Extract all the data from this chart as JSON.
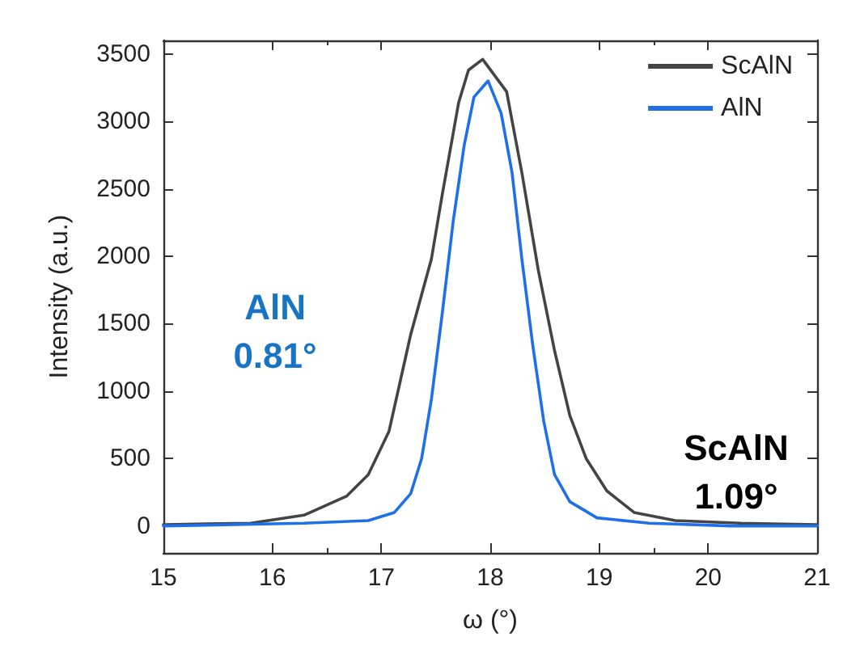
{
  "chart_data": {
    "type": "line",
    "xlabel": "ω (°)",
    "ylabel": "Intensity (a.u.)",
    "xlim": [
      15,
      21
    ],
    "xticks": [
      15,
      16,
      17,
      18,
      19,
      20,
      21
    ],
    "ylim": [
      -200,
      3600
    ],
    "yticks": [
      0,
      500,
      1000,
      1500,
      2000,
      2500,
      3000,
      3500
    ],
    "grid": false,
    "legend": "top right",
    "marker": "none",
    "line_style": "solid",
    "annotations": [
      "AlN\n0.81°",
      "ScAlN\n1.09°"
    ],
    "series": [
      {
        "name": "ScAlN",
        "color": "#444444",
        "x": [
          15,
          15.8,
          16.29,
          16.68,
          16.88,
          17.07,
          17.27,
          17.46,
          17.56,
          17.71,
          17.8,
          17.93,
          18.15,
          18.29,
          18.44,
          18.59,
          18.73,
          18.88,
          19.07,
          19.32,
          19.7,
          20.3,
          21
        ],
        "values": [
          10,
          20,
          80,
          220,
          380,
          700,
          1420,
          1980,
          2460,
          3140,
          3380,
          3460,
          3220,
          2620,
          1900,
          1300,
          820,
          500,
          260,
          100,
          40,
          20,
          10
        ]
      },
      {
        "name": "AlN",
        "color": "#1f6fe8",
        "x": [
          15,
          16.29,
          16.88,
          17.12,
          17.27,
          17.37,
          17.46,
          17.56,
          17.66,
          17.76,
          17.85,
          17.98,
          18.1,
          18.2,
          18.29,
          18.39,
          18.49,
          18.59,
          18.73,
          18.98,
          19.46,
          20.2,
          21
        ],
        "values": [
          0,
          20,
          40,
          100,
          240,
          500,
          940,
          1580,
          2260,
          2820,
          3180,
          3300,
          3060,
          2620,
          1980,
          1340,
          780,
          380,
          180,
          60,
          20,
          0,
          0
        ]
      }
    ]
  }
}
